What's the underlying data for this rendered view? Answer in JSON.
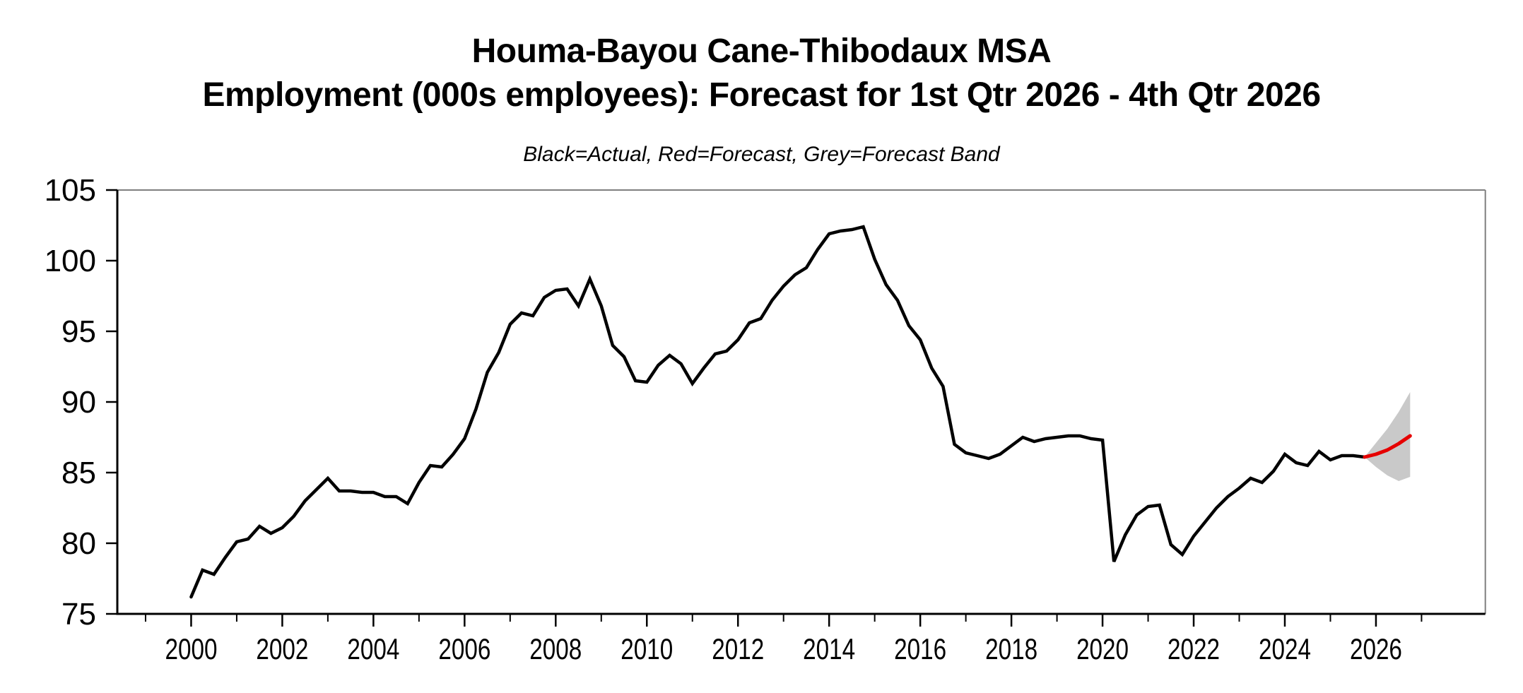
{
  "chart_data": {
    "type": "line",
    "title": "Houma-Bayou Cane-Thibodaux MSA",
    "title_line2": "Employment (000s employees): Forecast for 1st Qtr 2026 - 4th Qtr 2026",
    "subtitle": "Black=Actual, Red=Forecast, Grey=Forecast Band",
    "xlabel": "",
    "ylabel": "",
    "xlim": [
      1998.38,
      2028.4
    ],
    "ylim": [
      75,
      105
    ],
    "yticks": [
      75,
      80,
      85,
      90,
      95,
      100,
      105
    ],
    "xticks_major": [
      2000,
      2002,
      2004,
      2006,
      2008,
      2010,
      2012,
      2014,
      2016,
      2018,
      2020,
      2022,
      2024,
      2026
    ],
    "xticks_minor": [
      1999,
      2001,
      2003,
      2005,
      2007,
      2009,
      2011,
      2013,
      2015,
      2017,
      2019,
      2021,
      2023,
      2025,
      2027
    ],
    "grid": false,
    "legend_position": "top-center-as-subtitle",
    "colors": {
      "actual": "#000000",
      "forecast": "#e60000",
      "band": "#c9c9c9",
      "frame": "#7f7f7f"
    },
    "frequency": "quarterly",
    "series": [
      {
        "name": "Actual",
        "color_key": "actual",
        "x_start": 2000.0,
        "x_step": 0.25,
        "values": [
          76.2,
          78.1,
          77.8,
          79.0,
          80.1,
          80.3,
          81.2,
          80.7,
          81.1,
          81.9,
          83.0,
          83.8,
          84.6,
          83.7,
          83.7,
          83.6,
          83.6,
          83.3,
          83.3,
          82.8,
          84.3,
          85.5,
          85.4,
          86.3,
          87.4,
          89.5,
          92.1,
          93.5,
          95.5,
          96.3,
          96.1,
          97.4,
          97.9,
          98.0,
          96.8,
          98.7,
          96.8,
          94.0,
          93.2,
          91.5,
          91.4,
          92.6,
          93.3,
          92.7,
          91.3,
          92.4,
          93.4,
          93.6,
          94.4,
          95.6,
          95.9,
          97.2,
          98.2,
          99.0,
          99.5,
          100.8,
          101.9,
          102.1,
          102.2,
          102.4,
          100.1,
          98.3,
          97.2,
          95.4,
          94.4,
          92.4,
          91.1,
          87.0,
          86.4,
          86.2,
          86.0,
          86.3,
          86.9,
          87.5,
          87.2,
          87.4,
          87.5,
          87.6,
          87.6,
          87.4,
          87.3,
          78.7,
          80.6,
          82.0,
          82.6,
          82.7,
          79.9,
          79.2,
          80.5,
          81.5,
          82.5,
          83.3,
          83.9,
          84.6,
          84.3,
          85.1,
          86.3,
          85.7,
          85.5,
          86.5,
          85.9,
          86.2,
          86.2,
          86.1
        ]
      },
      {
        "name": "Forecast",
        "color_key": "forecast",
        "x": [
          2025.75,
          2026.0,
          2026.25,
          2026.5,
          2026.75
        ],
        "values": [
          86.1,
          86.3,
          86.6,
          87.05,
          87.6
        ]
      },
      {
        "name": "Forecast Band",
        "type": "band",
        "color_key": "band",
        "x": [
          2025.75,
          2026.0,
          2026.25,
          2026.5,
          2026.75
        ],
        "upper": [
          86.1,
          87.1,
          88.1,
          89.3,
          90.7
        ],
        "lower": [
          86.1,
          85.4,
          84.8,
          84.4,
          84.7
        ]
      }
    ]
  }
}
